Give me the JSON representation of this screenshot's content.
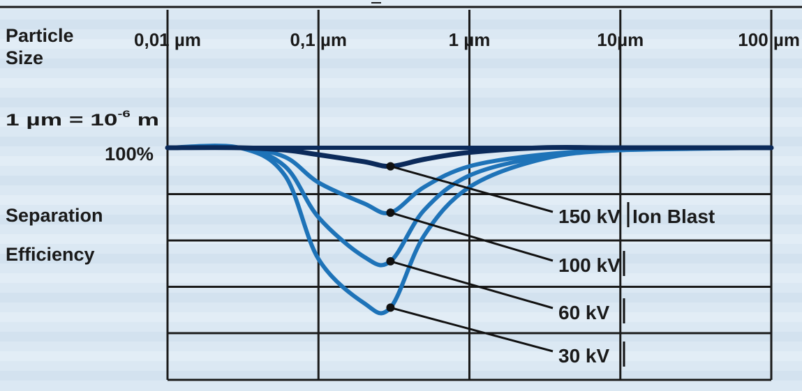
{
  "chart_data": {
    "type": "line",
    "title": "",
    "xlabel": "Particle Size",
    "x_unit_note": "1 µm = 10⁻⁶ m",
    "x_unit_note_base": "1 µm = 10",
    "x_unit_note_exp": "-6",
    "x_unit_note_tail": " m",
    "ylabel": "Separation Efficiency",
    "y_tick_label": "100%",
    "x_scale": "log",
    "x_range_um": [
      0.01,
      100
    ],
    "x_ticks": [
      {
        "value": 0.01,
        "label": "0,01 µm"
      },
      {
        "value": 0.1,
        "label": "0,1 µm"
      },
      {
        "value": 1,
        "label": "1 µm"
      },
      {
        "value": 10,
        "label": "10µm"
      },
      {
        "value": 100,
        "label": "100 µm"
      }
    ],
    "y_range_percent": [
      20,
      100
    ],
    "grid": true,
    "colors": {
      "background": "#dbe8f3",
      "grid": "#1a1a1a",
      "series_150": "#0b2a5a",
      "series_100": "#1e73b8",
      "series_60": "#1e73b8",
      "series_30": "#1e73b8"
    },
    "series": [
      {
        "name": "150 kV",
        "annotation": "Ion Blast",
        "min_at_um": 0.3,
        "min_efficiency": 92,
        "x": [
          0.01,
          0.03,
          0.06,
          0.1,
          0.2,
          0.3,
          0.5,
          1,
          3,
          10,
          100
        ],
        "y": [
          100,
          100,
          99,
          97,
          94,
          92,
          95,
          98,
          100,
          100,
          100
        ]
      },
      {
        "name": "100 kV",
        "annotation": "",
        "min_at_um": 0.3,
        "min_efficiency": 72,
        "x": [
          0.01,
          0.03,
          0.06,
          0.1,
          0.2,
          0.3,
          0.5,
          1,
          3,
          10,
          100
        ],
        "y": [
          100,
          100,
          96,
          85,
          76,
          72,
          83,
          92,
          97,
          99,
          100
        ]
      },
      {
        "name": "60 kV",
        "annotation": "",
        "min_at_um": 0.3,
        "min_efficiency": 51,
        "x": [
          0.01,
          0.03,
          0.06,
          0.1,
          0.2,
          0.3,
          0.5,
          1,
          3,
          10,
          100
        ],
        "y": [
          100,
          100,
          92,
          70,
          53,
          51,
          73,
          88,
          96,
          99,
          100
        ]
      },
      {
        "name": "30 kV",
        "annotation": "",
        "min_at_um": 0.3,
        "min_efficiency": 31,
        "x": [
          0.01,
          0.03,
          0.06,
          0.1,
          0.2,
          0.3,
          0.5,
          1,
          3,
          10,
          100
        ],
        "y": [
          100,
          100,
          88,
          52,
          33,
          31,
          62,
          83,
          95,
          99,
          100
        ]
      }
    ]
  }
}
